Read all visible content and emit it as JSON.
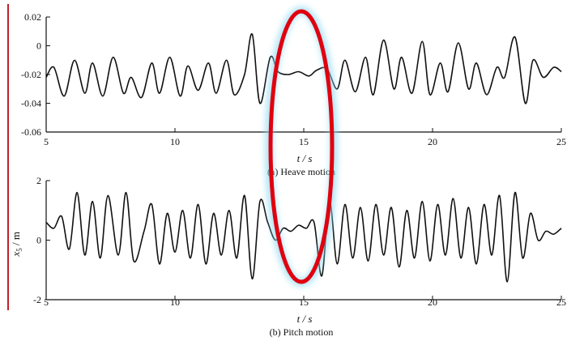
{
  "chart_data": [
    {
      "type": "line",
      "caption_marker": "(a)",
      "caption_text": "Heave motion",
      "xlabel": "t / s",
      "ylabel": "",
      "xlim": [
        5,
        25
      ],
      "ylim": [
        -0.06,
        0.02
      ],
      "xticks": [
        5,
        10,
        15,
        20,
        25
      ],
      "xtick_labels": [
        "5",
        "10",
        "15",
        "20",
        "25"
      ],
      "yticks": [
        0.02,
        0,
        -0.02,
        -0.04,
        -0.06
      ],
      "ytick_labels": [
        "0.02",
        "0",
        "-0.02",
        "-0.04",
        "-0.06"
      ],
      "grid": false,
      "series": [
        {
          "x": [
            5.0,
            5.3,
            5.7,
            6.1,
            6.5,
            6.8,
            7.2,
            7.6,
            8.0,
            8.3,
            8.7,
            9.1,
            9.4,
            9.8,
            10.2,
            10.5,
            10.9,
            11.3,
            11.6,
            12.0,
            12.3,
            12.7,
            13.0,
            13.3,
            13.7,
            14.0,
            14.4,
            14.8,
            15.2,
            15.5,
            15.9,
            16.3,
            16.6,
            17.0,
            17.4,
            17.7,
            18.1,
            18.5,
            18.8,
            19.2,
            19.6,
            19.9,
            20.3,
            20.6,
            21.0,
            21.4,
            21.7,
            22.1,
            22.5,
            22.8,
            23.2,
            23.6,
            23.9,
            24.3,
            24.7,
            25.0
          ],
          "y": [
            -0.022,
            -0.015,
            -0.035,
            -0.01,
            -0.033,
            -0.012,
            -0.035,
            -0.008,
            -0.033,
            -0.022,
            -0.036,
            -0.012,
            -0.033,
            -0.008,
            -0.035,
            -0.014,
            -0.031,
            -0.012,
            -0.033,
            -0.01,
            -0.034,
            -0.02,
            0.008,
            -0.04,
            -0.008,
            -0.018,
            -0.02,
            -0.018,
            -0.021,
            -0.017,
            -0.016,
            -0.03,
            -0.01,
            -0.032,
            -0.008,
            -0.034,
            0.004,
            -0.03,
            -0.008,
            -0.033,
            0.003,
            -0.034,
            -0.012,
            -0.032,
            0.002,
            -0.03,
            -0.012,
            -0.034,
            -0.015,
            -0.022,
            0.006,
            -0.04,
            -0.01,
            -0.022,
            -0.015,
            -0.018
          ]
        }
      ]
    },
    {
      "type": "line",
      "caption_marker": "(b)",
      "caption_text": "Pitch motion",
      "xlabel": "t / s",
      "ylabel": "x5 / m",
      "ylabel_base": "x",
      "ylabel_sub": "5",
      "ylabel_rest": " / m",
      "xlim": [
        5,
        25
      ],
      "ylim": [
        -2,
        2
      ],
      "xticks": [
        5,
        10,
        15,
        20,
        25
      ],
      "xtick_labels": [
        "5",
        "10",
        "15",
        "20",
        "25"
      ],
      "yticks": [
        2,
        0,
        -2
      ],
      "ytick_labels": [
        "2",
        "0",
        "-2"
      ],
      "grid": false,
      "series": [
        {
          "x": [
            5.0,
            5.3,
            5.6,
            5.9,
            6.2,
            6.5,
            6.8,
            7.1,
            7.4,
            7.8,
            8.1,
            8.4,
            8.8,
            9.1,
            9.4,
            9.7,
            10.0,
            10.3,
            10.6,
            10.9,
            11.2,
            11.5,
            11.8,
            12.1,
            12.4,
            12.7,
            13.0,
            13.3,
            13.6,
            13.9,
            14.2,
            14.5,
            14.8,
            15.1,
            15.4,
            15.7,
            16.0,
            16.3,
            16.6,
            16.9,
            17.2,
            17.5,
            17.8,
            18.1,
            18.4,
            18.7,
            19.0,
            19.3,
            19.6,
            19.9,
            20.2,
            20.5,
            20.8,
            21.1,
            21.4,
            21.7,
            22.0,
            22.3,
            22.6,
            22.9,
            23.2,
            23.5,
            23.8,
            24.1,
            24.4,
            24.7,
            25.0
          ],
          "y": [
            0.6,
            0.4,
            0.8,
            -0.3,
            1.6,
            -0.5,
            1.3,
            -0.6,
            1.5,
            -0.5,
            1.6,
            -0.7,
            0.3,
            1.2,
            -0.8,
            0.9,
            -0.4,
            1.0,
            -0.6,
            1.2,
            -0.8,
            0.9,
            -0.5,
            1.0,
            -0.6,
            1.5,
            -1.3,
            1.3,
            0.6,
            0.0,
            0.4,
            0.3,
            0.5,
            0.4,
            0.6,
            -1.2,
            1.3,
            -0.8,
            1.2,
            -0.6,
            1.1,
            -0.7,
            1.2,
            -0.5,
            1.1,
            -0.9,
            1.0,
            -0.6,
            1.3,
            -0.7,
            1.2,
            -0.5,
            1.4,
            -0.6,
            1.1,
            -0.8,
            1.2,
            -0.5,
            1.5,
            -1.4,
            1.6,
            -0.6,
            0.9,
            0.0,
            0.3,
            0.2,
            0.4
          ]
        }
      ]
    }
  ],
  "colors": {
    "line": "#111111",
    "highlight_ellipse": "#e0000f",
    "highlight_glow": "#8ad8f0",
    "page_side_rule": "#c0202a"
  }
}
